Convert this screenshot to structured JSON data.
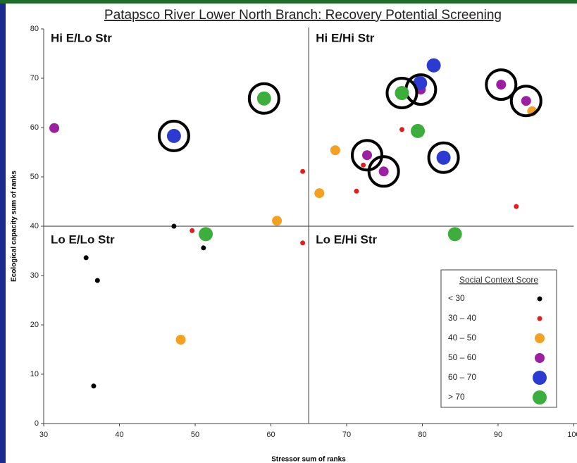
{
  "chart_data": {
    "type": "scatter",
    "title": "Patapsco River Lower North Branch: Recovery Potential Screening",
    "xlabel": "Stressor sum of ranks",
    "ylabel": "Ecological capacity sum of ranks",
    "xlim": [
      30,
      100
    ],
    "ylim": [
      0,
      80
    ],
    "xticks": [
      30,
      40,
      50,
      60,
      70,
      80,
      90,
      100
    ],
    "yticks": [
      0,
      10,
      20,
      30,
      40,
      50,
      60,
      70,
      80
    ],
    "quadrant_lines": {
      "x": 65,
      "y": 40
    },
    "annotations": [
      "Hi E/Lo Str",
      "Hi E/Hi Str",
      "Lo E/Lo Str",
      "Lo E/Hi Str"
    ],
    "legend_title": "Social Context Score",
    "legend_position": "lower right",
    "series": [
      {
        "name": "< 30",
        "color": "#000000",
        "size": 3.5,
        "x": [
          47.2,
          51.1,
          35.6,
          37.1,
          36.6
        ],
        "values": [
          40,
          35.6,
          33.6,
          29,
          7.6
        ],
        "circled": []
      },
      {
        "name": "30 – 40",
        "color": "#e51c1c",
        "size": 3.5,
        "x": [
          49.6,
          64.2,
          64.2,
          72.2,
          71.3,
          77.3,
          92.4
        ],
        "values": [
          39.1,
          51.1,
          36.6,
          52.4,
          47.1,
          59.6,
          44
        ],
        "circled": []
      },
      {
        "name": "40 – 50",
        "color": "#f5a020",
        "size": 7,
        "x": [
          68.5,
          66.4,
          60.8,
          48.1,
          94.5
        ],
        "values": [
          55.4,
          46.7,
          41.1,
          17,
          63.3
        ],
        "circled": []
      },
      {
        "name": "50 – 60",
        "color": "#9c1fa3",
        "size": 7,
        "x": [
          31.4,
          72.7,
          74.9,
          79.8,
          90.4,
          93.7
        ],
        "values": [
          59.9,
          54.4,
          51.1,
          67.7,
          68.7,
          65.4
        ],
        "circled": [
          1,
          2,
          3,
          4,
          5
        ]
      },
      {
        "name": "60 – 70",
        "color": "#2b3bd1",
        "size": 10,
        "x": [
          47.2,
          81.5,
          79.7,
          82.8
        ],
        "values": [
          58.3,
          72.6,
          69,
          53.9
        ],
        "circled": [
          0,
          3
        ]
      },
      {
        "name": "> 70",
        "color": "#3cae3c",
        "size": 10,
        "x": [
          59.1,
          51.4,
          77.3,
          79.4,
          84.3
        ],
        "values": [
          65.9,
          38.4,
          67,
          59.3,
          38.4
        ],
        "circled": [
          0,
          2
        ]
      }
    ]
  }
}
